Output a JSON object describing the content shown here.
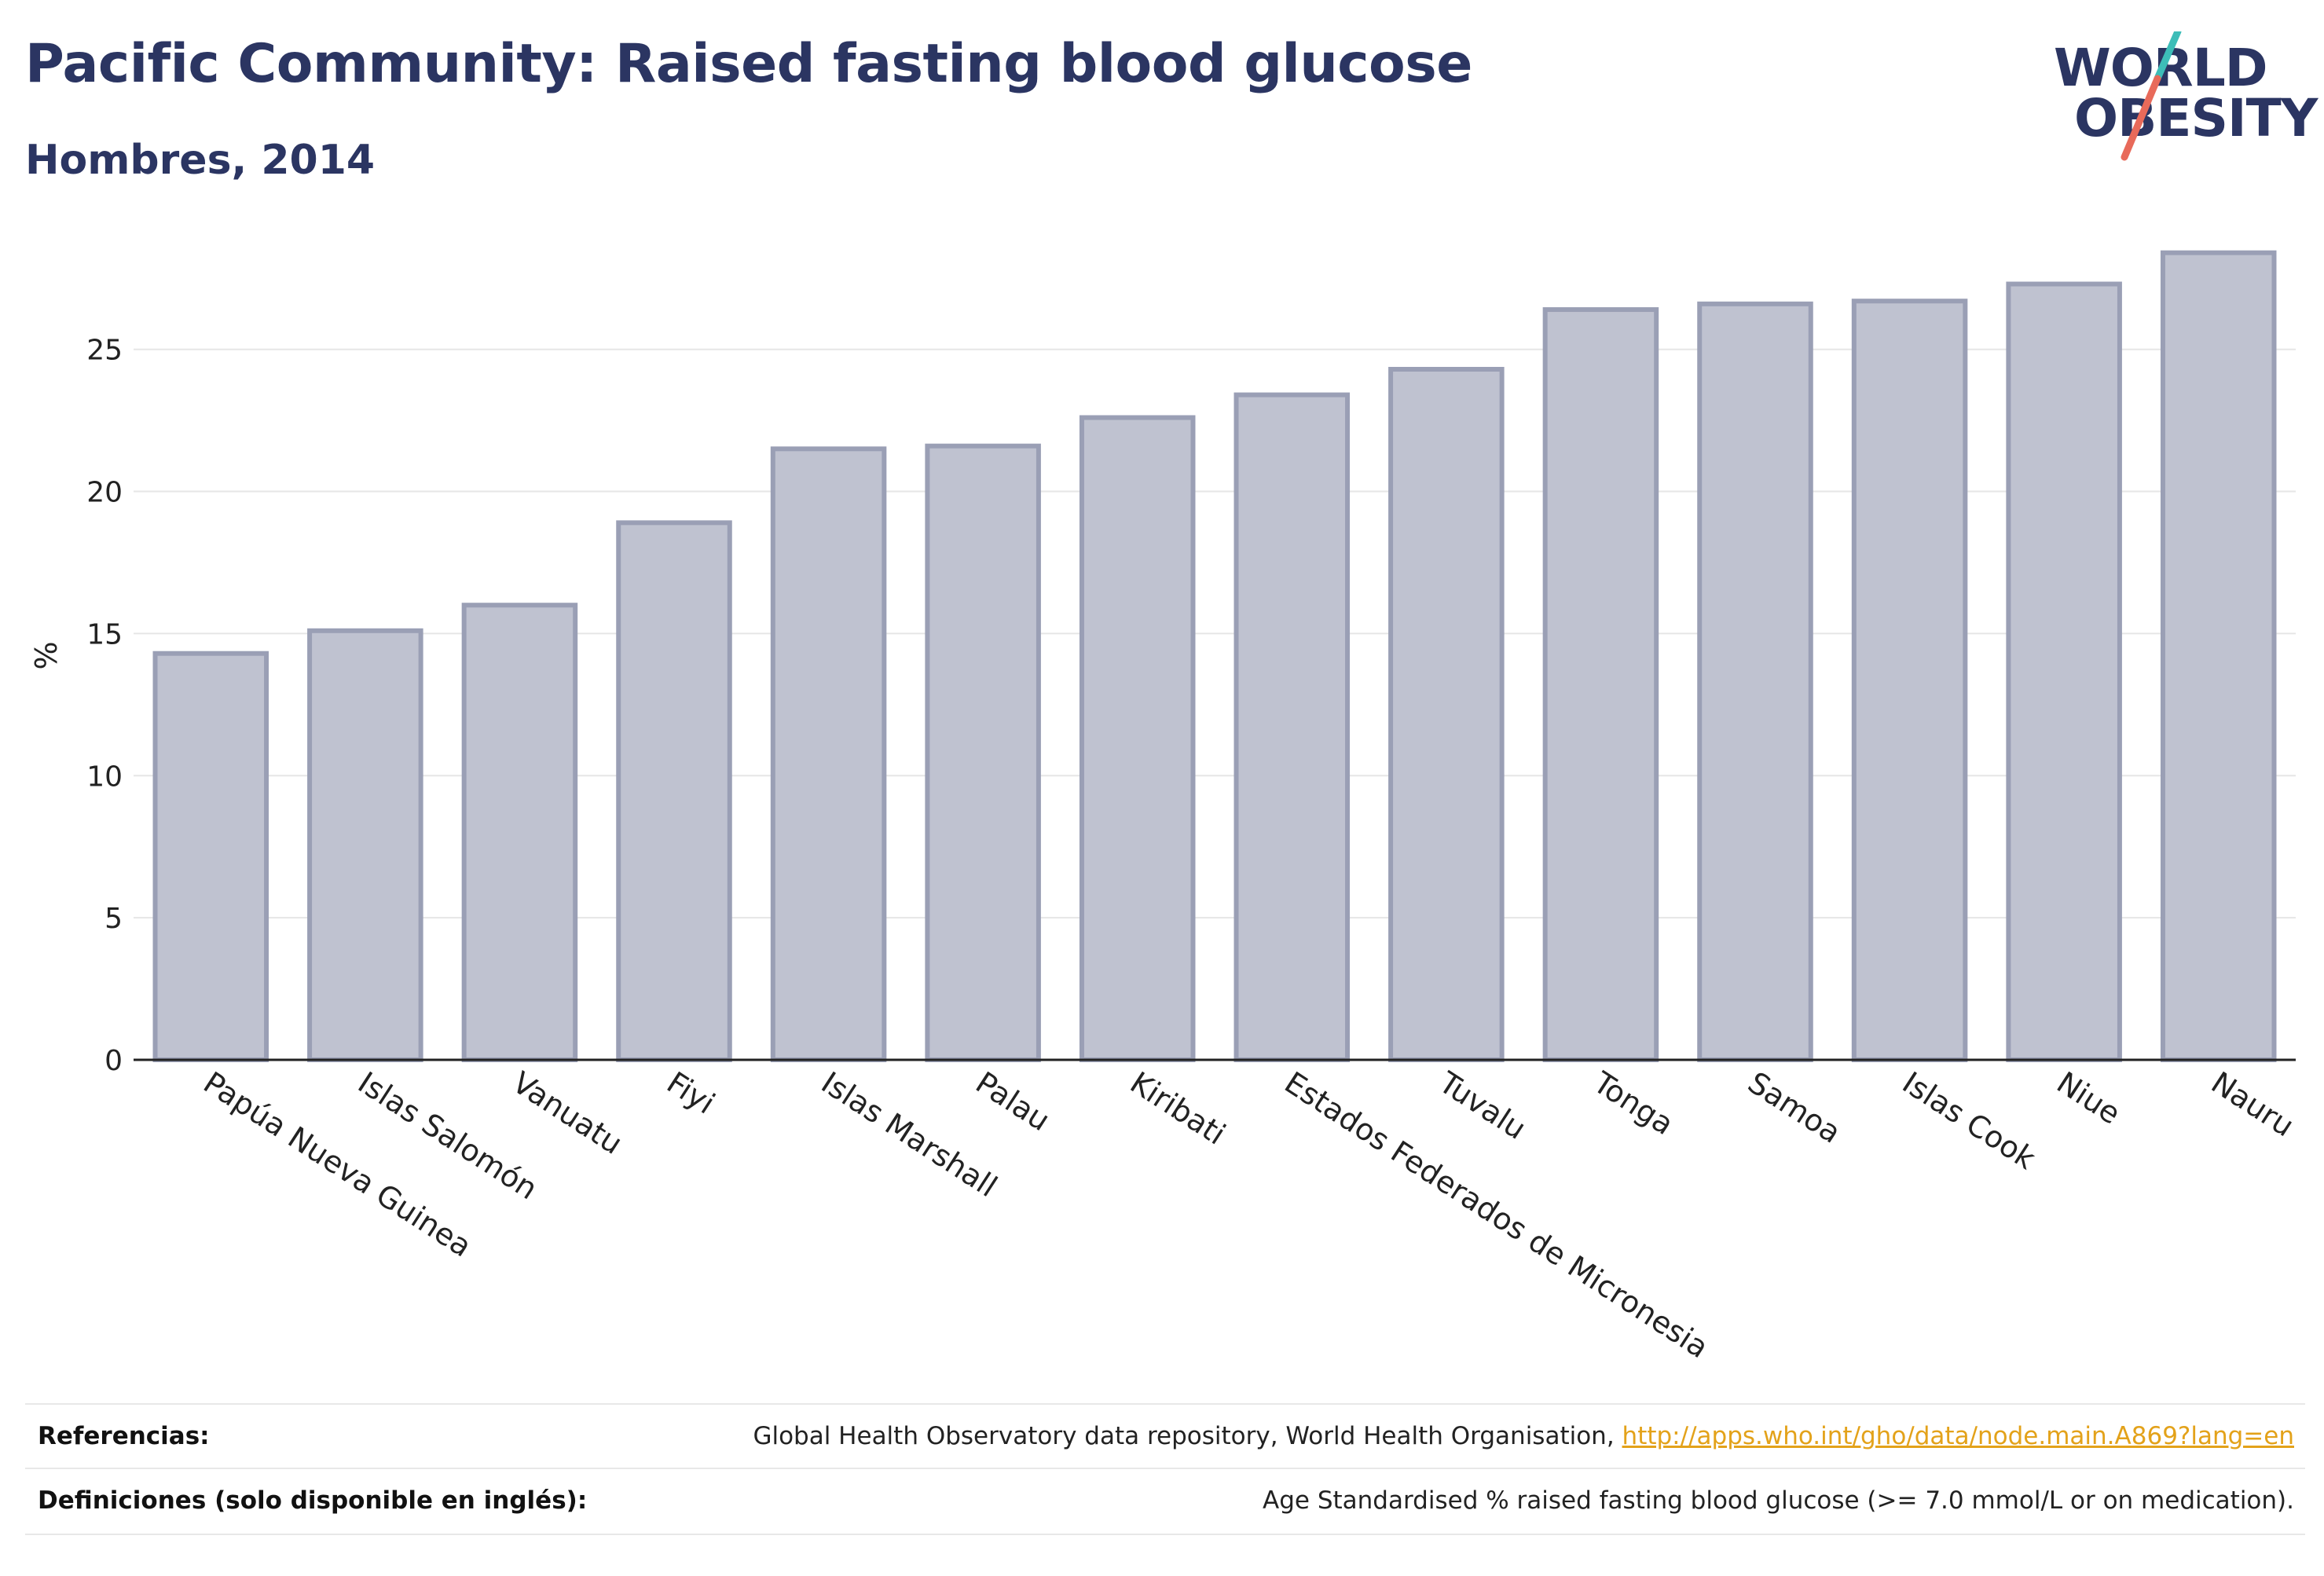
{
  "header": {
    "title": "Pacific Community: Raised fasting blood glucose",
    "subtitle": "Hombres, 2014"
  },
  "logo": {
    "line1": "WORLD",
    "line2": "OBESITY",
    "slash_colors": [
      "#3dbdb8",
      "#e86a5a"
    ]
  },
  "chart_data": {
    "type": "bar",
    "ylabel": "%",
    "xlabel": "",
    "ylim": [
      0,
      29
    ],
    "yticks": [
      0,
      5,
      10,
      15,
      20,
      25
    ],
    "grid": true,
    "bar_color": "#bfc2d0",
    "bar_edge_color": "#9a9fb5",
    "categories": [
      "Papúa Nueva Guinea",
      "Islas Salomón",
      "Vanuatu",
      "Fiyi",
      "Islas Marshall",
      "Palau",
      "Kiribati",
      "Estados Federados de Micronesia",
      "Tuvalu",
      "Tonga",
      "Samoa",
      "Islas Cook",
      "Niue",
      "Nauru"
    ],
    "values": [
      14.3,
      15.1,
      16.0,
      18.9,
      21.5,
      21.6,
      22.6,
      23.4,
      24.3,
      26.4,
      26.6,
      26.7,
      27.3,
      28.4
    ]
  },
  "references": {
    "refs_label": "Referencias:",
    "refs_text": "Global Health Observatory data repository, World Health Organisation, ",
    "refs_link": "http://apps.who.int/gho/data/node.main.A869?lang=en",
    "defs_label": "Definiciones (solo disponible en inglés):",
    "defs_text": "Age Standardised % raised fasting blood glucose (>= 7.0 mmol/L or on medication)."
  }
}
